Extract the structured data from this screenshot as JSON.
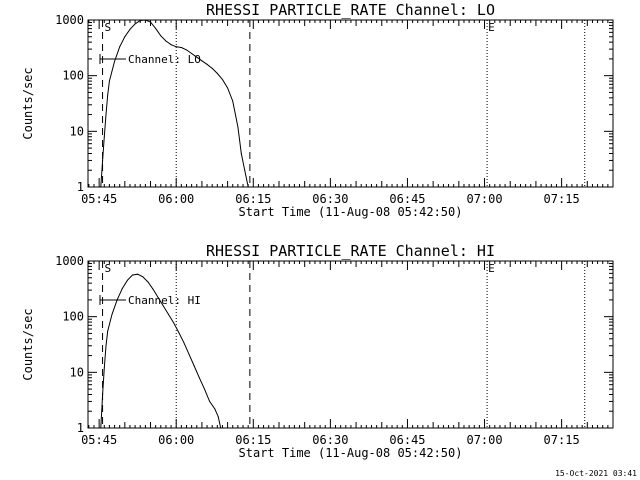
{
  "footer": {
    "timestamp": "15-Oct-2021 03:41"
  },
  "chart_data": [
    {
      "type": "line",
      "title": "RHESSI PARTICLE_RATE Channel: LO",
      "xlabel": "Start Time (11-Aug-08 05:42:50)",
      "ylabel": "Counts/sec",
      "yscale": "log",
      "xlim": [
        "05:42:50",
        "07:25:00"
      ],
      "ylim": [
        1,
        1000
      ],
      "x_ticks": [
        "05:45",
        "06:00",
        "06:15",
        "06:30",
        "06:45",
        "07:00",
        "07:15"
      ],
      "y_ticks": [
        "1",
        "10",
        "100",
        "1000"
      ],
      "legend": {
        "position": "top-left",
        "label": "Channel: LO"
      },
      "markers": {
        "start_label": "S",
        "end_label": "E",
        "dashed_lines": [
          "05:45:40",
          "06:14:20"
        ],
        "dotted_lines": [
          "06:00:00",
          "07:00:30",
          "07:19:30"
        ]
      },
      "series": [
        {
          "line_style": "solid",
          "points": [
            [
              "05:45:20",
              1.0
            ],
            [
              "05:45:40",
              3
            ],
            [
              "05:46:00",
              8
            ],
            [
              "05:46:20",
              20
            ],
            [
              "05:46:40",
              45
            ],
            [
              "05:47:00",
              80
            ],
            [
              "05:48:00",
              180
            ],
            [
              "05:49:00",
              330
            ],
            [
              "05:50:00",
              500
            ],
            [
              "05:51:00",
              680
            ],
            [
              "05:52:00",
              850
            ],
            [
              "05:53:00",
              980
            ],
            [
              "05:54:00",
              1000
            ],
            [
              "05:55:00",
              920
            ],
            [
              "05:56:00",
              700
            ],
            [
              "05:57:00",
              520
            ],
            [
              "05:58:00",
              420
            ],
            [
              "05:59:00",
              360
            ],
            [
              "06:00:00",
              330
            ],
            [
              "06:01:00",
              320
            ],
            [
              "06:02:00",
              290
            ],
            [
              "06:03:00",
              250
            ],
            [
              "06:04:00",
              215
            ],
            [
              "06:05:00",
              185
            ],
            [
              "06:06:00",
              160
            ],
            [
              "06:07:00",
              135
            ],
            [
              "06:08:00",
              110
            ],
            [
              "06:09:00",
              85
            ],
            [
              "06:10:00",
              60
            ],
            [
              "06:11:00",
              35
            ],
            [
              "06:12:00",
              12
            ],
            [
              "06:12:40",
              4
            ],
            [
              "06:13:20",
              2
            ],
            [
              "06:14:00",
              1.0
            ]
          ]
        }
      ]
    },
    {
      "type": "line",
      "title": "RHESSI PARTICLE_RATE Channel: HI",
      "xlabel": "Start Time (11-Aug-08 05:42:50)",
      "ylabel": "Counts/sec",
      "yscale": "log",
      "xlim": [
        "05:42:50",
        "07:25:00"
      ],
      "ylim": [
        1,
        1000
      ],
      "x_ticks": [
        "05:45",
        "06:00",
        "06:15",
        "06:30",
        "06:45",
        "07:00",
        "07:15"
      ],
      "y_ticks": [
        "1",
        "10",
        "100",
        "1000"
      ],
      "legend": {
        "position": "top-left",
        "label": "Channel: HI"
      },
      "markers": {
        "start_label": "S",
        "end_label": "E",
        "dashed_lines": [
          "05:45:40",
          "06:14:20"
        ],
        "dotted_lines": [
          "06:00:00",
          "07:00:30",
          "07:19:30"
        ]
      },
      "series": [
        {
          "line_style": "solid",
          "points": [
            [
              "05:45:20",
              1.0
            ],
            [
              "05:45:40",
              4
            ],
            [
              "05:46:00",
              12
            ],
            [
              "05:46:20",
              30
            ],
            [
              "05:46:40",
              55
            ],
            [
              "05:47:30",
              110
            ],
            [
              "05:48:30",
              200
            ],
            [
              "05:49:30",
              320
            ],
            [
              "05:50:30",
              450
            ],
            [
              "05:51:30",
              560
            ],
            [
              "05:52:30",
              580
            ],
            [
              "05:53:30",
              520
            ],
            [
              "05:54:30",
              420
            ],
            [
              "05:55:30",
              310
            ],
            [
              "05:56:30",
              220
            ],
            [
              "05:57:30",
              155
            ],
            [
              "05:58:30",
              110
            ],
            [
              "05:59:30",
              78
            ],
            [
              "06:00:30",
              52
            ],
            [
              "06:01:30",
              34
            ],
            [
              "06:02:30",
              21
            ],
            [
              "06:03:30",
              13
            ],
            [
              "06:04:30",
              8
            ],
            [
              "06:05:30",
              5
            ],
            [
              "06:06:30",
              3
            ],
            [
              "06:07:30",
              2.2
            ],
            [
              "06:08:10",
              1.6
            ],
            [
              "06:08:40",
              1.0
            ]
          ]
        }
      ]
    }
  ]
}
